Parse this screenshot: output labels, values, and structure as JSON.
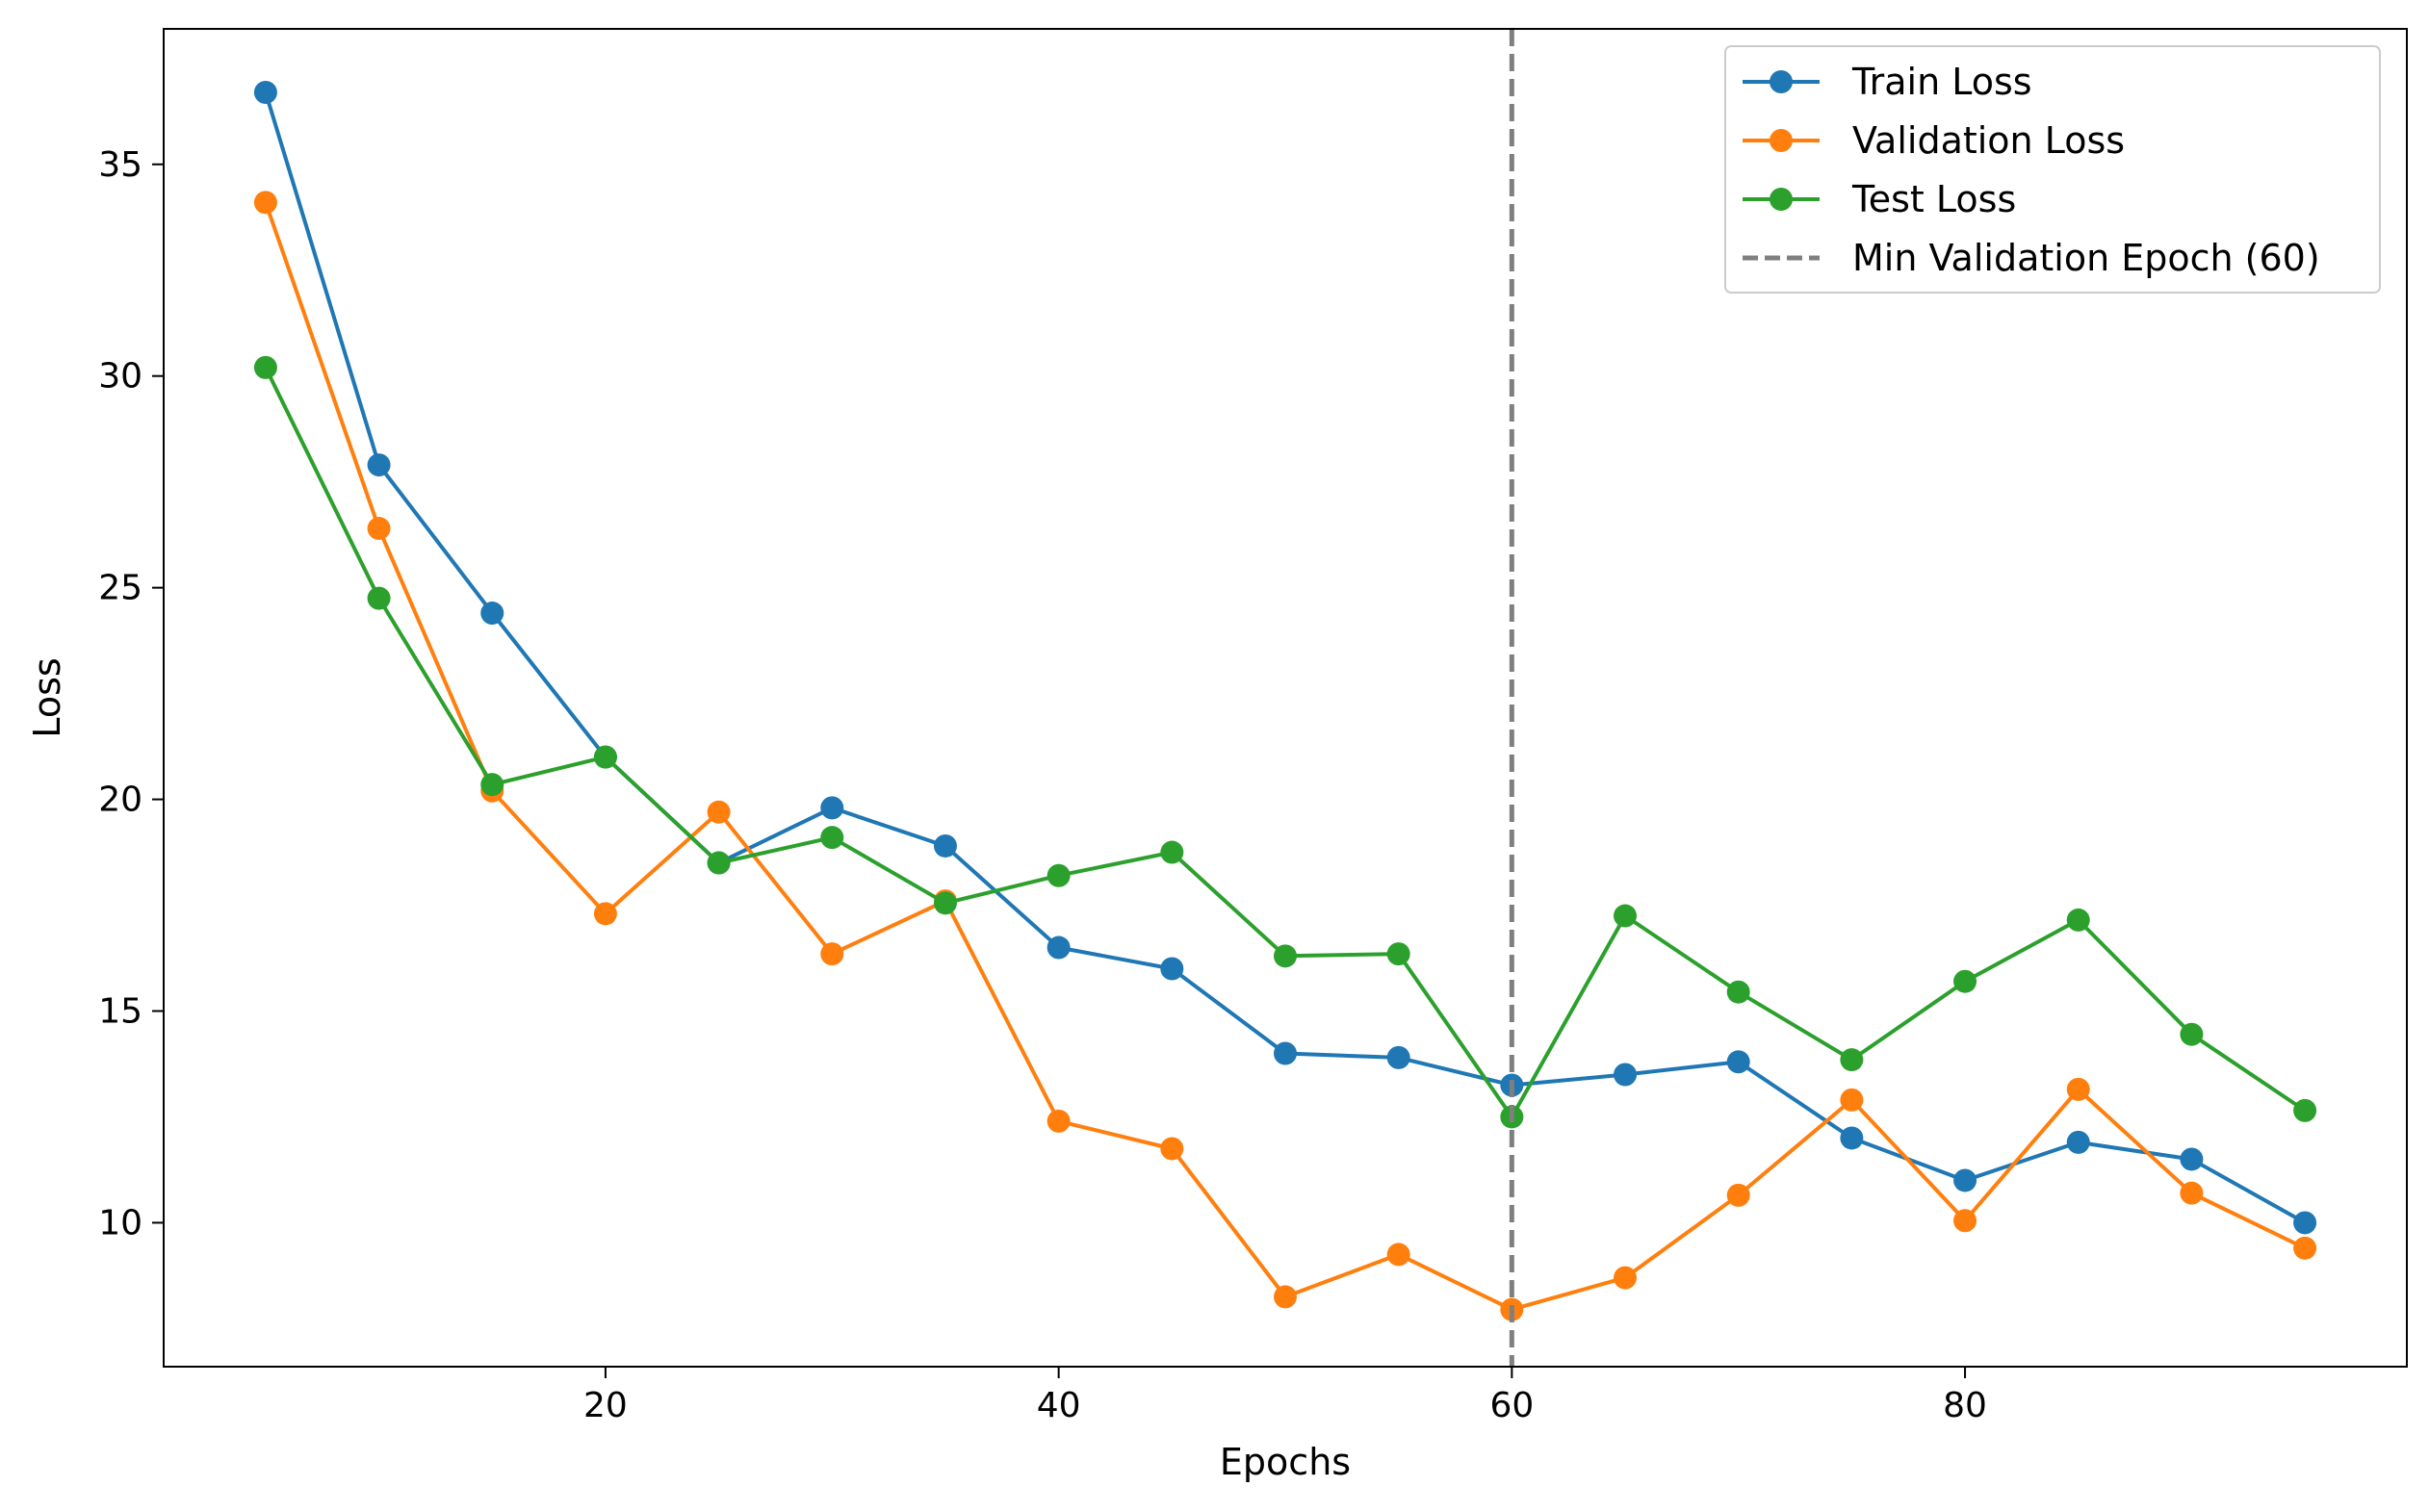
{
  "chart_data": {
    "type": "line",
    "xlabel": "Epochs",
    "ylabel": "Loss",
    "xlim": [
      0.5,
      99.5
    ],
    "ylim": [
      6.6,
      38.2
    ],
    "xticks": [
      20,
      40,
      60,
      80
    ],
    "yticks": [
      10,
      15,
      20,
      25,
      30,
      35
    ],
    "grid": false,
    "legend_position": "upper-right",
    "x": [
      5,
      10,
      15,
      20,
      25,
      30,
      35,
      40,
      45,
      50,
      55,
      60,
      65,
      70,
      75,
      80,
      85,
      90,
      95
    ],
    "series": [
      {
        "name": "Train Loss",
        "color": "#1f77b4",
        "values": [
          36.7,
          27.9,
          24.4,
          21.0,
          18.5,
          19.8,
          18.9,
          16.5,
          16.0,
          14.0,
          13.9,
          13.25,
          13.5,
          13.8,
          12.0,
          11.0,
          11.9,
          11.5,
          10.0
        ]
      },
      {
        "name": "Validation Loss",
        "color": "#ff7f0e",
        "values": [
          34.1,
          26.4,
          20.2,
          17.3,
          19.7,
          16.35,
          17.6,
          12.4,
          11.75,
          8.25,
          9.25,
          7.95,
          8.7,
          10.65,
          12.9,
          10.05,
          13.15,
          10.7,
          9.4
        ]
      },
      {
        "name": "Test Loss",
        "color": "#2ca02c",
        "values": [
          30.2,
          24.75,
          20.35,
          21.0,
          18.5,
          19.1,
          17.55,
          18.2,
          18.75,
          16.3,
          16.35,
          12.5,
          17.25,
          15.45,
          13.85,
          15.7,
          17.15,
          14.45,
          12.65
        ]
      }
    ],
    "vline": {
      "x": 60,
      "label": "Min Validation Epoch (60)",
      "color": "#7f7f7f"
    }
  }
}
